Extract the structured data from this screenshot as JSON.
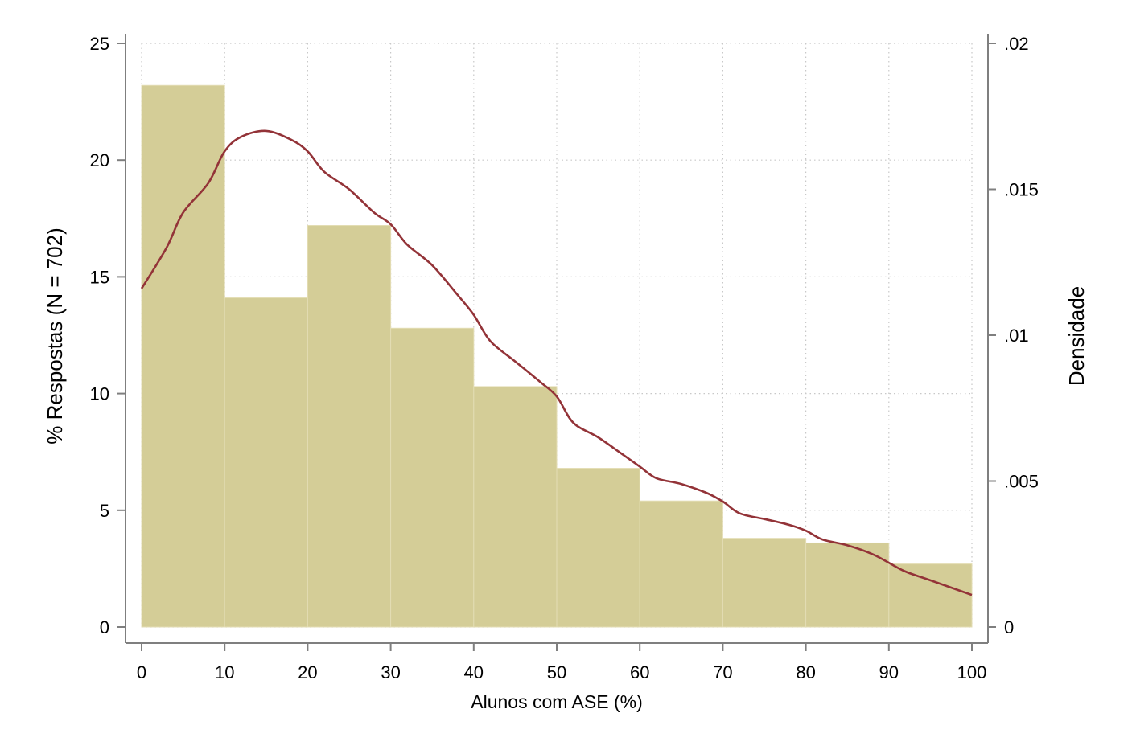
{
  "chart_data": {
    "type": "bar",
    "subtype": "histogram-with-density",
    "xlabel": "Alunos com ASE (%)",
    "ylabel": "% Respostas (N = 702)",
    "y2label": "Densidade",
    "xlim": [
      0,
      100
    ],
    "ylim": [
      0,
      25
    ],
    "y2lim": [
      0,
      0.02
    ],
    "x_ticks": [
      "0",
      "10",
      "20",
      "30",
      "40",
      "50",
      "60",
      "70",
      "80",
      "90",
      "100"
    ],
    "y_ticks": [
      "0",
      "5",
      "10",
      "15",
      "20",
      "25"
    ],
    "y2_ticks": [
      "0",
      ".005",
      ".01",
      ".015",
      ".02"
    ],
    "grid": true,
    "bins": [
      {
        "start": 0,
        "end": 10,
        "value": 23.2
      },
      {
        "start": 10,
        "end": 20,
        "value": 14.1
      },
      {
        "start": 20,
        "end": 30,
        "value": 17.2
      },
      {
        "start": 30,
        "end": 40,
        "value": 12.8
      },
      {
        "start": 40,
        "end": 50,
        "value": 10.3
      },
      {
        "start": 50,
        "end": 60,
        "value": 6.8
      },
      {
        "start": 60,
        "end": 70,
        "value": 5.4
      },
      {
        "start": 70,
        "end": 80,
        "value": 3.8
      },
      {
        "start": 80,
        "end": 90,
        "value": 3.6
      },
      {
        "start": 90,
        "end": 100,
        "value": 2.7
      }
    ],
    "density": {
      "x": [
        0,
        3,
        5,
        8,
        10,
        12,
        15,
        18,
        20,
        22,
        25,
        28,
        30,
        32,
        35,
        38,
        40,
        42,
        45,
        48,
        50,
        52,
        55,
        58,
        60,
        62,
        65,
        68,
        70,
        72,
        75,
        78,
        80,
        82,
        85,
        88,
        90,
        92,
        95,
        100
      ],
      "y": [
        0.0116,
        0.013,
        0.0142,
        0.0152,
        0.0163,
        0.0168,
        0.017,
        0.0167,
        0.0163,
        0.0156,
        0.015,
        0.0142,
        0.0138,
        0.0131,
        0.0124,
        0.0114,
        0.0107,
        0.0098,
        0.0091,
        0.0084,
        0.0079,
        0.007,
        0.0065,
        0.0059,
        0.0055,
        0.0051,
        0.0049,
        0.0046,
        0.0043,
        0.0039,
        0.0037,
        0.0035,
        0.0033,
        0.003,
        0.0028,
        0.0025,
        0.0022,
        0.0019,
        0.0016,
        0.0011
      ]
    },
    "colors": {
      "bar_fill": "#d4cd97",
      "bar_edge": "#e3ddb4",
      "density_line": "#933338",
      "axis": "#7f7f7f",
      "grid": "#c8c8c8"
    }
  }
}
